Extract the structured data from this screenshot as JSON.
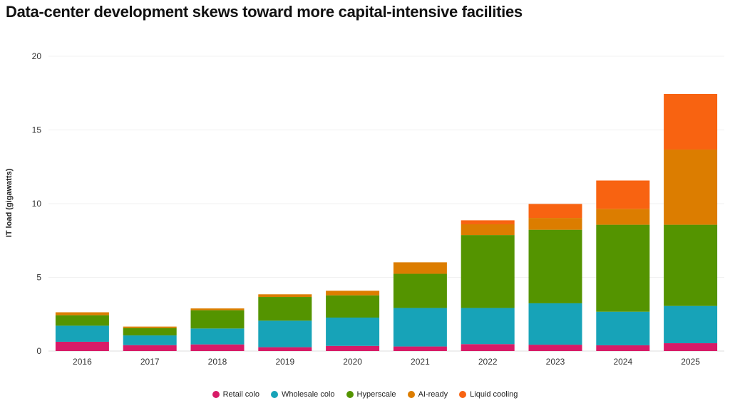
{
  "chart_data": {
    "type": "bar",
    "stacked": true,
    "title": "Data-center development skews toward more capital-intensive facilities",
    "xlabel": "",
    "ylabel": "IT load (gigawatts)",
    "ylim": [
      0,
      20
    ],
    "yticks": [
      0,
      5,
      10,
      15,
      20
    ],
    "grid": true,
    "legend_position": "bottom",
    "categories": [
      "2016",
      "2017",
      "2018",
      "2019",
      "2020",
      "2021",
      "2022",
      "2023",
      "2024",
      "2025"
    ],
    "series": [
      {
        "name": "Retail colo",
        "color": "#d81b67",
        "values": [
          0.63,
          0.4,
          0.45,
          0.26,
          0.35,
          0.31,
          0.47,
          0.43,
          0.39,
          0.53
        ]
      },
      {
        "name": "Wholesale colo",
        "color": "#17a3b8",
        "values": [
          1.09,
          0.66,
          1.08,
          1.8,
          1.92,
          2.61,
          2.45,
          2.81,
          2.28,
          2.53
        ]
      },
      {
        "name": "Hyperscale",
        "color": "#549400",
        "values": [
          0.71,
          0.5,
          1.24,
          1.61,
          1.51,
          2.32,
          4.95,
          4.99,
          5.9,
          5.51
        ]
      },
      {
        "name": "AI-ready",
        "color": "#dc7d00",
        "values": [
          0.2,
          0.1,
          0.12,
          0.18,
          0.31,
          0.78,
          0.73,
          0.8,
          1.08,
          5.1
        ]
      },
      {
        "name": "Liquid cooling",
        "color": "#f86311",
        "values": [
          0,
          0,
          0,
          0,
          0,
          0,
          0.27,
          0.95,
          1.92,
          3.77
        ]
      }
    ]
  }
}
